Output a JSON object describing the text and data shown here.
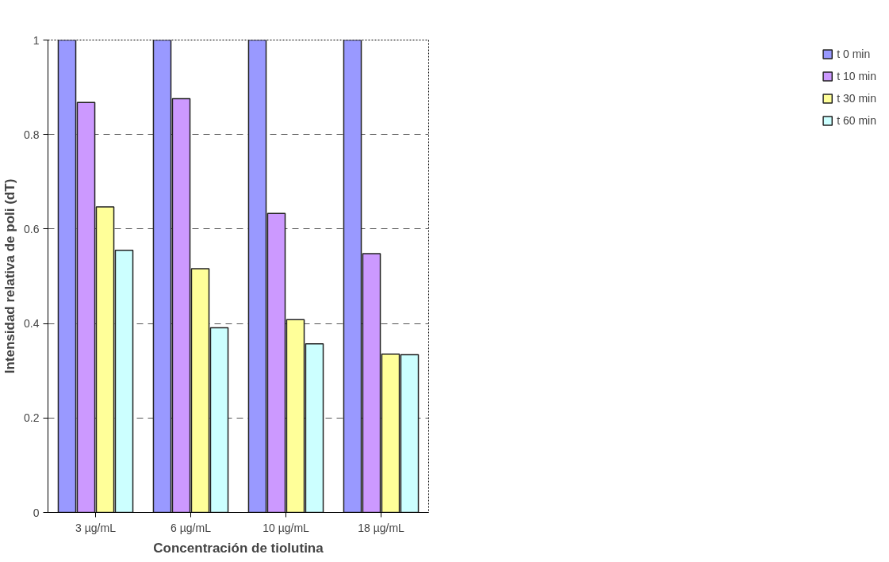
{
  "chart_data": {
    "type": "bar",
    "xlabel": "Concentración de tiolutina",
    "ylabel": "Intensidad relativa de poli (dT)",
    "categories": [
      "3 µg/mL",
      "6 µg/mL",
      "10 µg/mL",
      "18 µg/mL"
    ],
    "series": [
      {
        "name": "t 0 min",
        "color": "#9999ff",
        "values": [
          1,
          1,
          1,
          1
        ]
      },
      {
        "name": "t 10 min",
        "color": "#cc99ff",
        "values": [
          0.868,
          0.876,
          0.633,
          0.548
        ]
      },
      {
        "name": "t 30 min",
        "color": "#ffff99",
        "values": [
          0.647,
          0.516,
          0.408,
          0.335
        ]
      },
      {
        "name": "t 60 min",
        "color": "#ccffff",
        "values": [
          0.555,
          0.391,
          0.357,
          0.334
        ]
      }
    ],
    "ylim": [
      0,
      1
    ],
    "yticks": [
      0,
      0.2,
      0.4,
      0.6,
      0.8,
      1
    ],
    "grid": "y",
    "legend": "right"
  }
}
